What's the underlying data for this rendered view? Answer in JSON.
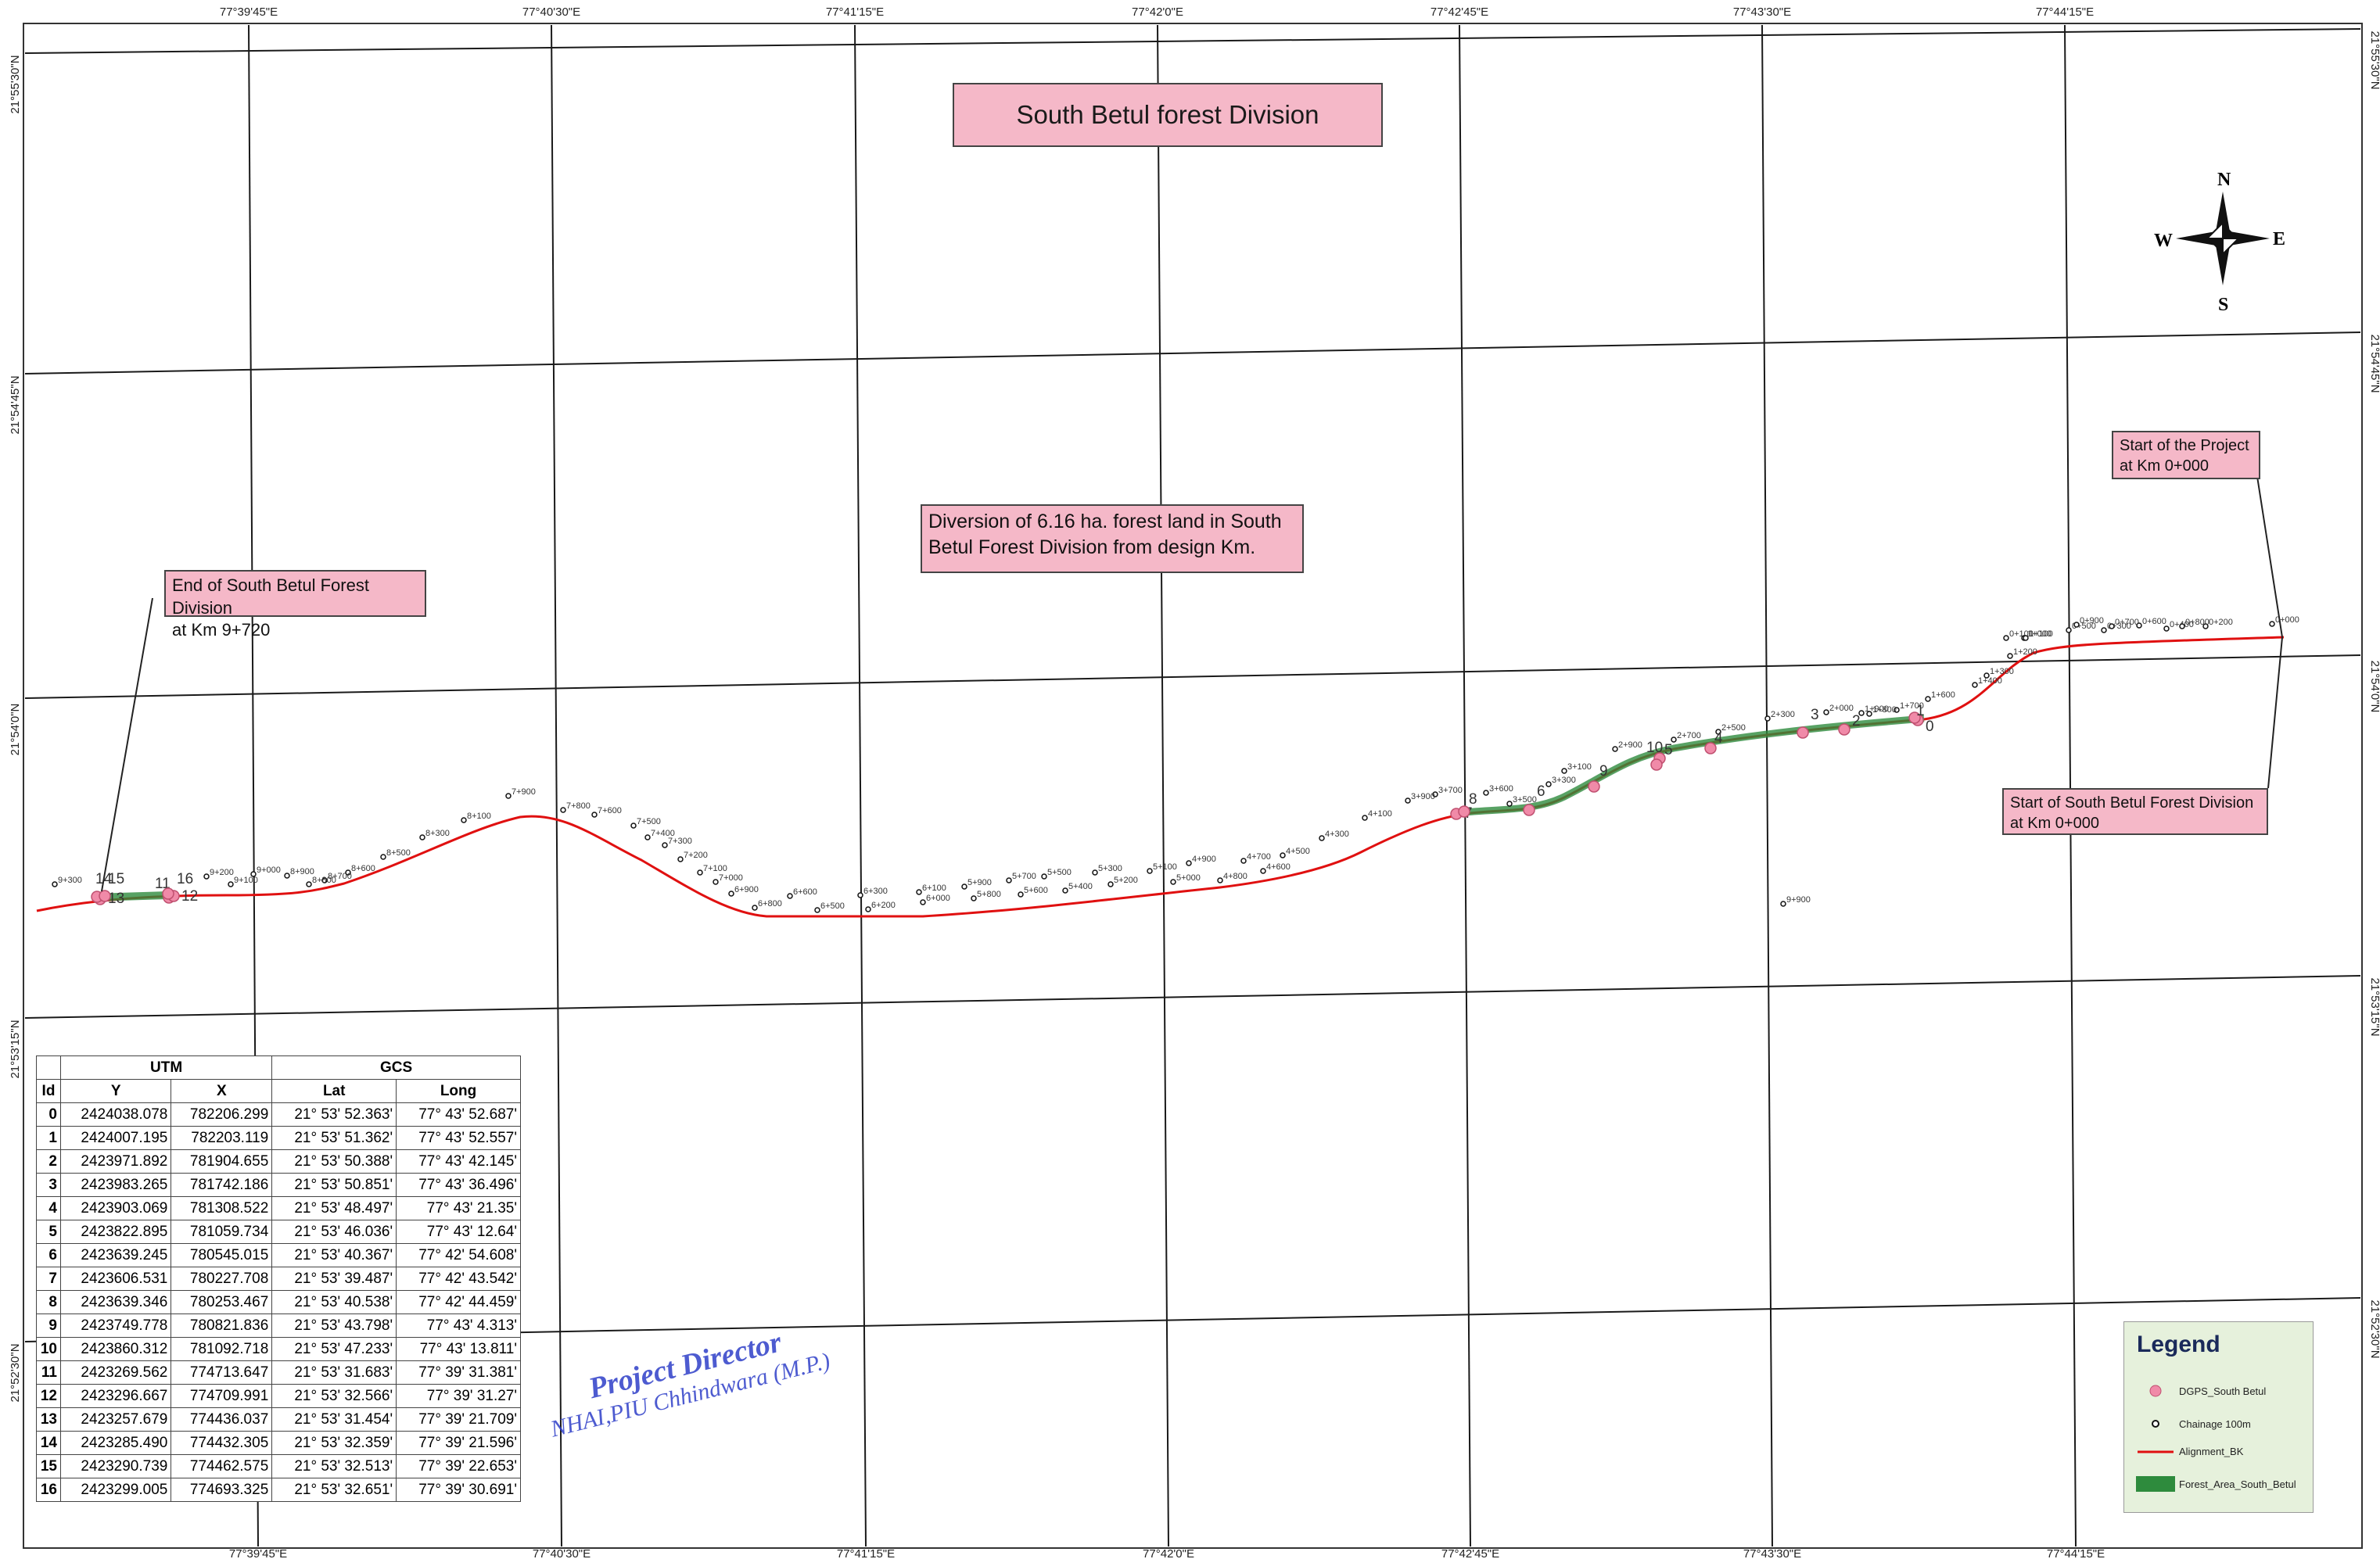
{
  "map": {
    "title": "South Betul forest Division",
    "notes": {
      "end": [
        "End of South Betul Forest Division",
        "at Km 9+720"
      ],
      "diversion": [
        "Diversion of 6.16 ha. forest land in South",
        "Betul Forest Division from design Km."
      ],
      "start_project": [
        "Start of the Project",
        "at Km 0+000"
      ],
      "start_division": [
        "Start of South Betul Forest Division",
        "at Km 0+000"
      ]
    },
    "compass": {
      "n": "N",
      "s": "S",
      "e": "E",
      "w": "W"
    },
    "grid": {
      "longitudes": [
        "77°39'45\"E",
        "77°40'30\"E",
        "77°41'15\"E",
        "77°42'0\"E",
        "77°42'45\"E",
        "77°43'30\"E",
        "77°44'15\"E"
      ],
      "latitudes": [
        "21°55'30\"N",
        "21°54'45\"N",
        "21°54'0\"N",
        "21°53'15\"N",
        "21°52'30\"N"
      ]
    },
    "chainage_labels": [
      "0+000",
      "0+100",
      "0+200",
      "0+300",
      "0+400",
      "0+500",
      "0+600",
      "0+700",
      "0+800",
      "0+900",
      "1+000",
      "1+100",
      "1+200",
      "1+300",
      "1+400",
      "1+600",
      "1+700",
      "1+800",
      "1+900",
      "2+000",
      "2+300",
      "2+500",
      "2+700",
      "2+900",
      "3+100",
      "3+300",
      "3+500",
      "3+600",
      "3+700",
      "3+900",
      "4+100",
      "4+300",
      "4+500",
      "4+600",
      "4+700",
      "4+800",
      "4+900",
      "5+000",
      "5+100",
      "5+200",
      "5+300",
      "5+400",
      "5+500",
      "5+600",
      "5+700",
      "5+800",
      "5+900",
      "6+000",
      "6+100",
      "6+200",
      "6+300",
      "6+500",
      "6+600",
      "6+800",
      "6+900",
      "7+000",
      "7+100",
      "7+200",
      "7+300",
      "7+400",
      "7+500",
      "7+600",
      "7+800",
      "7+900",
      "8+100",
      "8+300",
      "8+500",
      "8+600",
      "8+700",
      "8+800",
      "8+900",
      "9+000",
      "9+100",
      "9+200",
      "9+300",
      "9+900"
    ],
    "point_ids": [
      "0",
      "1",
      "2",
      "3",
      "4",
      "5",
      "6",
      "7",
      "8",
      "9",
      "10",
      "11",
      "12",
      "13",
      "14",
      "15",
      "16"
    ],
    "colors": {
      "alignment": "#e01010",
      "forest": "#2e8b3d",
      "dgps": "#f08aa8",
      "note_bg": "#f5b8c8"
    }
  },
  "table": {
    "group_headers": {
      "utm": "UTM",
      "gcs": "GCS"
    },
    "headers": [
      "Id",
      "Y",
      "X",
      "Lat",
      "Long"
    ],
    "rows": [
      [
        "0",
        "2424038.078",
        "782206.299",
        "21° 53' 52.363'",
        "77° 43' 52.687'"
      ],
      [
        "1",
        "2424007.195",
        "782203.119",
        "21° 53' 51.362'",
        "77° 43' 52.557'"
      ],
      [
        "2",
        "2423971.892",
        "781904.655",
        "21° 53' 50.388'",
        "77° 43' 42.145'"
      ],
      [
        "3",
        "2423983.265",
        "781742.186",
        "21° 53' 50.851'",
        "77° 43' 36.496'"
      ],
      [
        "4",
        "2423903.069",
        "781308.522",
        "21° 53' 48.497'",
        "77° 43' 21.35'"
      ],
      [
        "5",
        "2423822.895",
        "781059.734",
        "21° 53' 46.036'",
        "77° 43' 12.64'"
      ],
      [
        "6",
        "2423639.245",
        "780545.015",
        "21° 53' 40.367'",
        "77° 42' 54.608'"
      ],
      [
        "7",
        "2423606.531",
        "780227.708",
        "21° 53' 39.487'",
        "77° 42' 43.542'"
      ],
      [
        "8",
        "2423639.346",
        "780253.467",
        "21° 53' 40.538'",
        "77° 42' 44.459'"
      ],
      [
        "9",
        "2423749.778",
        "780821.836",
        "21° 53' 43.798'",
        "77° 43' 4.313'"
      ],
      [
        "10",
        "2423860.312",
        "781092.718",
        "21° 53' 47.233'",
        "77° 43' 13.811'"
      ],
      [
        "11",
        "2423269.562",
        "774713.647",
        "21° 53' 31.683'",
        "77° 39' 31.381'"
      ],
      [
        "12",
        "2423296.667",
        "774709.991",
        "21° 53' 32.566'",
        "77° 39' 31.27'"
      ],
      [
        "13",
        "2423257.679",
        "774436.037",
        "21° 53' 31.454'",
        "77° 39' 21.709'"
      ],
      [
        "14",
        "2423285.490",
        "774432.305",
        "21° 53' 32.359'",
        "77° 39' 21.596'"
      ],
      [
        "15",
        "2423290.739",
        "774462.575",
        "21° 53' 32.513'",
        "77° 39' 22.653'"
      ],
      [
        "16",
        "2423299.005",
        "774693.325",
        "21° 53' 32.651'",
        "77° 39' 30.691'"
      ]
    ]
  },
  "stamp": {
    "title": "Project Director",
    "subtitle": "NHAI,PIU Chhindwara (M.P.)"
  },
  "legend": {
    "title": "Legend",
    "items": [
      {
        "symbol": "dgps-icon",
        "label": "DGPS_South Betul"
      },
      {
        "symbol": "chainage-dot-icon",
        "label": "Chainage 100m"
      },
      {
        "symbol": "alignment-line-icon",
        "label": "Alignment_BK"
      },
      {
        "symbol": "forest-area-icon",
        "label": "Forest_Area_South_Betul"
      }
    ]
  }
}
